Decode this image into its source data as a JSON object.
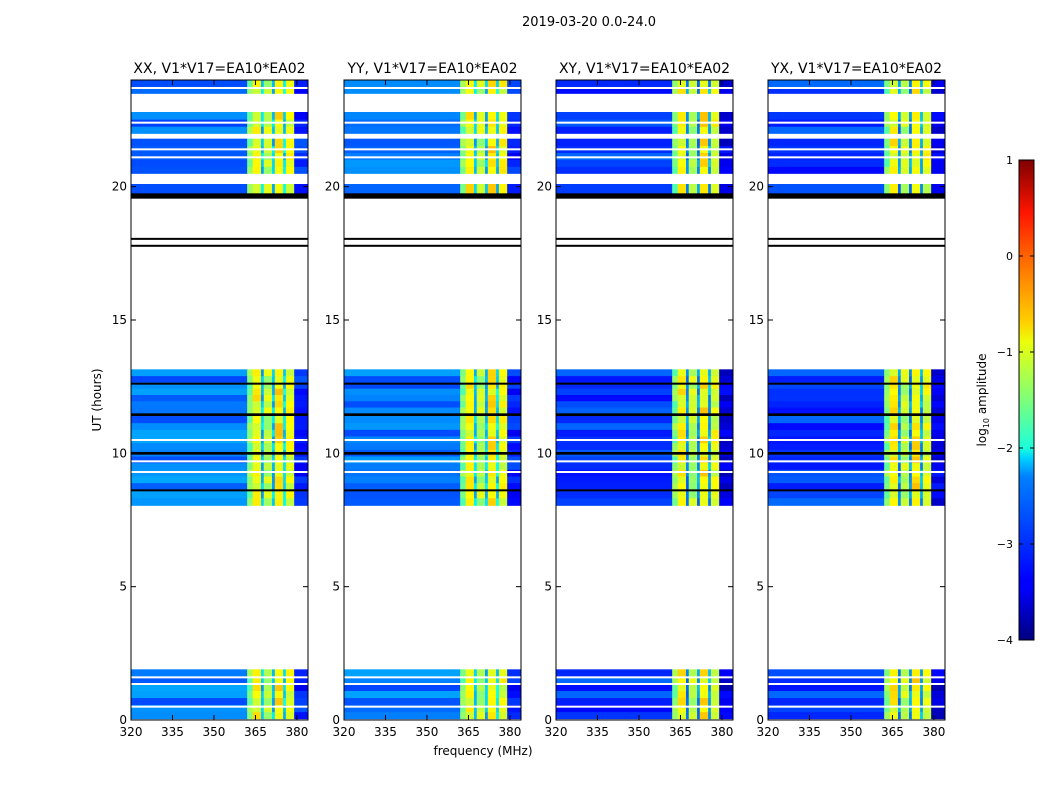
{
  "chart_data": {
    "type": "heatmap",
    "suptitle": "2019-03-20 0.0-24.0",
    "xlabel": "frequency (MHz)",
    "ylabel": "UT (hours)",
    "xlim": [
      320,
      384
    ],
    "ylim": [
      0,
      24
    ],
    "xticks": [
      320,
      335,
      350,
      365,
      380
    ],
    "yticks": [
      0,
      5,
      10,
      15,
      20
    ],
    "colorbar": {
      "label": "log10 amplitude",
      "label_main": "log",
      "label_sub": "10",
      "label_rest": " amplitude",
      "range": [
        -4,
        1
      ],
      "ticks": [
        1,
        0,
        -1,
        -2,
        -3,
        -4
      ],
      "tick_labels": [
        "1",
        "0",
        "−1",
        "−2",
        "−3",
        "−4"
      ],
      "colormap": "jet"
    },
    "panels": [
      {
        "title": "XX, V1*V17=EA10*EA02"
      },
      {
        "title": "YY, V1*V17=EA10*EA02"
      },
      {
        "title": "XY, V1*V17=EA10*EA02"
      },
      {
        "title": "YX, V1*V17=EA10*EA02"
      }
    ],
    "frequency_segments": [
      {
        "fmin": 320,
        "fmax": 362,
        "log_amp": -2.8
      },
      {
        "fmin": 362,
        "fmax": 364,
        "log_amp": -1.5
      },
      {
        "fmin": 364,
        "fmax": 367,
        "log_amp": -0.9
      },
      {
        "fmin": 367,
        "fmax": 368,
        "log_amp": -2.4
      },
      {
        "fmin": 368,
        "fmax": 371,
        "log_amp": -1.2
      },
      {
        "fmin": 371,
        "fmax": 372,
        "log_amp": -2.4
      },
      {
        "fmin": 372,
        "fmax": 375,
        "log_amp": -0.8
      },
      {
        "fmin": 375,
        "fmax": 376,
        "log_amp": -2.3
      },
      {
        "fmin": 376,
        "fmax": 379,
        "log_amp": -1.0
      },
      {
        "fmin": 379,
        "fmax": 384,
        "log_amp": -3.2
      }
    ],
    "observed_time_blocks": [
      [
        0.05,
        1.9
      ],
      [
        8.05,
        8.9
      ],
      [
        8.9,
        11.4
      ],
      [
        11.5,
        13.15
      ],
      [
        19.75,
        20.1
      ],
      [
        20.5,
        21.8
      ],
      [
        22.0,
        22.8
      ],
      [
        23.5,
        24.0
      ]
    ],
    "flagged_time_blocks": [
      [
        19.55,
        19.75
      ],
      [
        17.75,
        17.82
      ],
      [
        18.02,
        18.08
      ],
      [
        11.4,
        11.5
      ],
      [
        9.95,
        10.05
      ],
      [
        12.6,
        12.65
      ],
      [
        8.6,
        8.65
      ]
    ],
    "gap_lines": [
      0.5,
      1.35,
      1.6,
      9.3,
      9.7,
      10.5,
      21.1,
      21.4,
      22.4,
      23.7
    ]
  }
}
